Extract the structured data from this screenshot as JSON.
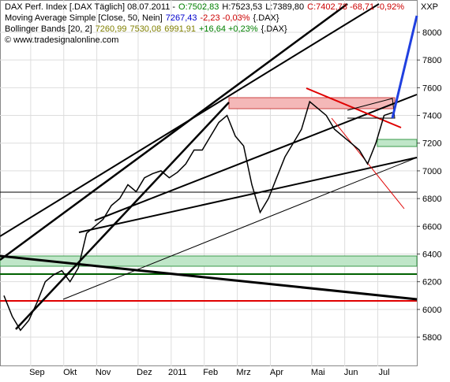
{
  "chart_data": {
    "type": "line",
    "header": [
      [
        "DAX Perf. Index [.DAX Täglich] 08.07.2011 -",
        "O:7502,83",
        "H:7523,53",
        "L:7389,80",
        "C:7402,73 -68,71 -0,92%"
      ],
      [
        "Moving Average Simple [Close, 50, Nein]",
        "7267,43",
        "-2,23 -0,03%",
        "{.DAX}"
      ],
      [
        "Bollinger Bands [20, 2]",
        "7260,99",
        "7530,08",
        "6991,91",
        "+16,64 +0,23%",
        "{.DAX}"
      ],
      [
        "© www.tradesignalonline.com"
      ]
    ],
    "header_colors": [
      [
        "#000000",
        "#008000",
        "#000000",
        "#000000",
        "#cc0000"
      ],
      [
        "#000000",
        "#0000cc",
        "#cc0000",
        "#000000"
      ],
      [
        "#000000",
        "#808000",
        "#808000",
        "#808000",
        "#008000",
        "#000000"
      ],
      [
        "#000000"
      ]
    ],
    "corner_label": "XXP",
    "categories": [
      null,
      null,
      null,
      null,
      "Sep",
      null,
      null,
      null,
      "Okt",
      null,
      null,
      null,
      "Nov",
      null,
      null,
      null,
      null,
      "Dez",
      null,
      null,
      null,
      "2011",
      null,
      null,
      null,
      "Feb",
      null,
      null,
      null,
      "Mrz",
      null,
      null,
      null,
      "Apr",
      null,
      null,
      null,
      null,
      "Mai",
      null,
      null,
      null,
      "Jun",
      null,
      null,
      null,
      "Jul",
      null
    ],
    "values": [
      6100,
      5950,
      5850,
      5920,
      6050,
      6200,
      6250,
      6280,
      6200,
      6300,
      6550,
      6600,
      6650,
      6750,
      6800,
      6900,
      6850,
      6950,
      6980,
      7000,
      6950,
      6990,
      7050,
      7150,
      7150,
      7250,
      7350,
      7400,
      7250,
      7180,
      6900,
      6700,
      6800,
      6950,
      7100,
      7200,
      7300,
      7500,
      7450,
      7400,
      7300,
      7250,
      7200,
      7150,
      7050,
      7200,
      7400,
      7420
    ],
    "color": "#000000",
    "ylim": [
      5590,
      8233
    ],
    "yticks": [
      5800,
      6000,
      6200,
      6400,
      6600,
      6800,
      7000,
      7200,
      7400,
      7600,
      7800,
      8000
    ],
    "grid": true
  }
}
